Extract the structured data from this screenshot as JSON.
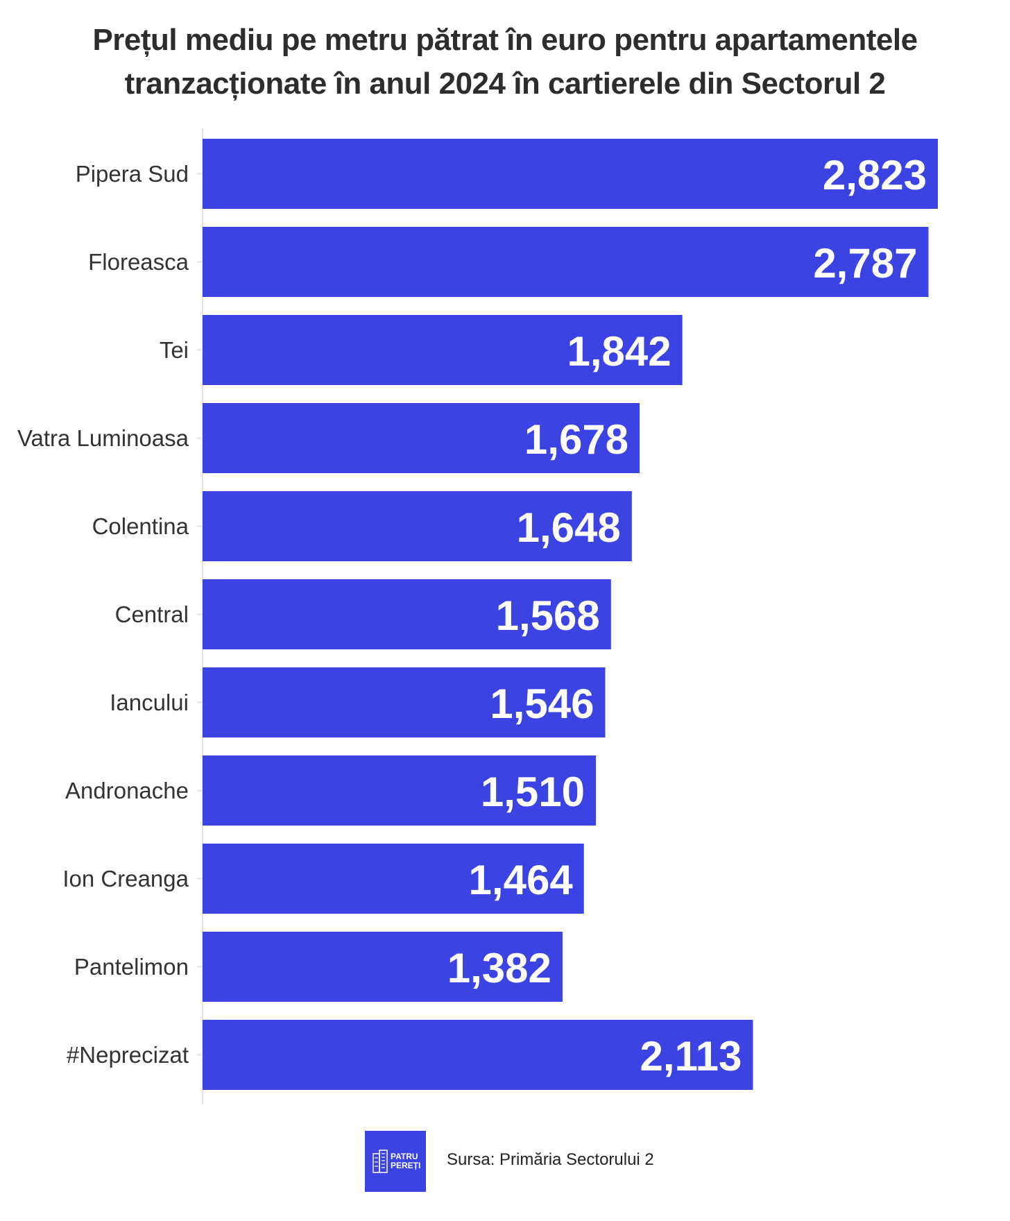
{
  "chart_data": {
    "type": "bar",
    "orientation": "horizontal",
    "title": "Prețul mediu pe metru pătrat în euro pentru apartamentele tranzacționate în anul 2024 în cartierele din Sectorul 2",
    "categories": [
      "Pipera Sud",
      "Floreasca",
      "Tei",
      "Vatra Luminoasa",
      "Colentina",
      "Central",
      "Iancului",
      "Andronache",
      "Ion Creanga",
      "Pantelimon",
      "#Neprecizat"
    ],
    "values": [
      2823,
      2787,
      1842,
      1678,
      1648,
      1568,
      1546,
      1510,
      1464,
      1382,
      2113
    ],
    "value_labels": [
      "2,823",
      "2,787",
      "1,842",
      "1,678",
      "1,648",
      "1,568",
      "1,546",
      "1,510",
      "1,464",
      "1,382",
      "2,113"
    ],
    "xlim": [
      0,
      2823
    ],
    "bar_color": "#3b43e3",
    "grid": false,
    "legend": "none"
  },
  "footer": {
    "logo_text": "PATRU\nPEREȚI",
    "source": "Sursa: Primăria Sectorului 2",
    "logo_color": "#3b43e3"
  }
}
